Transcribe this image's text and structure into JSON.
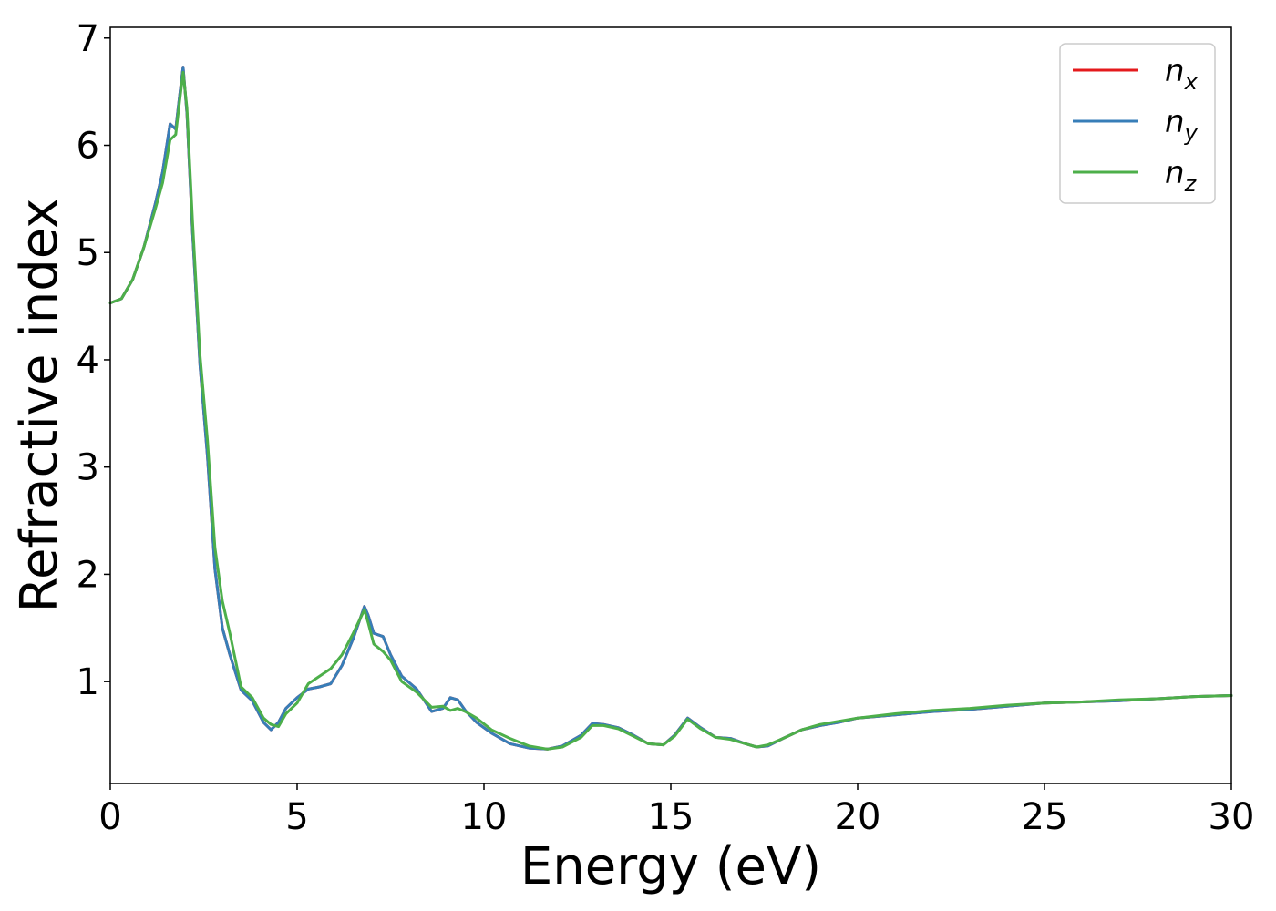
{
  "chart_data": {
    "type": "line",
    "xlabel": "Energy (eV)",
    "ylabel": "Refractive index",
    "xlim": [
      0,
      30
    ],
    "ylim": [
      0.05,
      7.1
    ],
    "xticks": [
      0,
      5,
      10,
      15,
      20,
      25,
      30
    ],
    "yticks": [
      1,
      2,
      3,
      4,
      5,
      6,
      7
    ],
    "grid": false,
    "legend_position": "top-right",
    "series": [
      {
        "name": "n_x",
        "legend_main": "n",
        "legend_sub": "x",
        "color": "#e41a1c",
        "x": [
          0,
          0.3,
          0.6,
          0.9,
          1.2,
          1.4,
          1.6,
          1.75,
          1.85,
          1.95,
          2.05,
          2.2,
          2.4,
          2.6,
          2.8,
          3.0,
          3.2,
          3.5,
          3.8,
          4.1,
          4.3,
          4.5,
          4.7,
          5.0,
          5.3,
          5.6,
          5.9,
          6.2,
          6.5,
          6.8,
          6.9,
          7.05,
          7.3,
          7.5,
          7.8,
          8.2,
          8.6,
          8.9,
          9.1,
          9.3,
          9.5,
          9.8,
          10.2,
          10.7,
          11.2,
          11.7,
          12.1,
          12.6,
          12.9,
          13.2,
          13.6,
          14.0,
          14.4,
          14.8,
          15.1,
          15.45,
          15.8,
          16.2,
          16.6,
          17.0,
          17.3,
          17.6,
          18.0,
          18.5,
          19.0,
          19.5,
          20.0,
          21,
          22,
          23,
          24,
          25,
          26,
          27,
          28,
          29,
          30
        ],
        "values": [
          4.53,
          4.57,
          4.75,
          5.05,
          5.45,
          5.75,
          6.2,
          6.15,
          6.45,
          6.73,
          6.3,
          5.2,
          3.95,
          3.1,
          2.05,
          1.5,
          1.25,
          0.92,
          0.82,
          0.62,
          0.55,
          0.62,
          0.75,
          0.85,
          0.93,
          0.95,
          0.98,
          1.15,
          1.4,
          1.7,
          1.62,
          1.45,
          1.42,
          1.25,
          1.05,
          0.93,
          0.72,
          0.75,
          0.85,
          0.83,
          0.73,
          0.62,
          0.52,
          0.42,
          0.38,
          0.37,
          0.4,
          0.5,
          0.61,
          0.6,
          0.57,
          0.5,
          0.42,
          0.41,
          0.5,
          0.66,
          0.57,
          0.48,
          0.47,
          0.42,
          0.39,
          0.4,
          0.47,
          0.55,
          0.59,
          0.62,
          0.66,
          0.69,
          0.72,
          0.74,
          0.77,
          0.8,
          0.81,
          0.82,
          0.84,
          0.86,
          0.87
        ]
      },
      {
        "name": "n_y",
        "legend_main": "n",
        "legend_sub": "y",
        "color": "#377eb8",
        "x": [
          0,
          0.3,
          0.6,
          0.9,
          1.2,
          1.4,
          1.6,
          1.75,
          1.85,
          1.95,
          2.05,
          2.2,
          2.4,
          2.6,
          2.8,
          3.0,
          3.2,
          3.5,
          3.8,
          4.1,
          4.3,
          4.5,
          4.7,
          5.0,
          5.3,
          5.6,
          5.9,
          6.2,
          6.5,
          6.8,
          6.9,
          7.05,
          7.3,
          7.5,
          7.8,
          8.2,
          8.6,
          8.9,
          9.1,
          9.3,
          9.5,
          9.8,
          10.2,
          10.7,
          11.2,
          11.7,
          12.1,
          12.6,
          12.9,
          13.2,
          13.6,
          14.0,
          14.4,
          14.8,
          15.1,
          15.45,
          15.8,
          16.2,
          16.6,
          17.0,
          17.3,
          17.6,
          18.0,
          18.5,
          19.0,
          19.5,
          20.0,
          21,
          22,
          23,
          24,
          25,
          26,
          27,
          28,
          29,
          30
        ],
        "values": [
          4.53,
          4.57,
          4.75,
          5.05,
          5.45,
          5.75,
          6.2,
          6.15,
          6.45,
          6.73,
          6.3,
          5.2,
          3.95,
          3.1,
          2.05,
          1.5,
          1.25,
          0.92,
          0.82,
          0.62,
          0.55,
          0.62,
          0.75,
          0.85,
          0.93,
          0.95,
          0.98,
          1.15,
          1.4,
          1.7,
          1.62,
          1.45,
          1.42,
          1.25,
          1.05,
          0.93,
          0.72,
          0.75,
          0.85,
          0.83,
          0.73,
          0.62,
          0.52,
          0.42,
          0.38,
          0.37,
          0.4,
          0.5,
          0.61,
          0.6,
          0.57,
          0.5,
          0.42,
          0.41,
          0.5,
          0.66,
          0.57,
          0.48,
          0.47,
          0.42,
          0.39,
          0.4,
          0.47,
          0.55,
          0.59,
          0.62,
          0.66,
          0.69,
          0.72,
          0.74,
          0.77,
          0.8,
          0.81,
          0.82,
          0.84,
          0.86,
          0.87
        ]
      },
      {
        "name": "n_z",
        "legend_main": "n",
        "legend_sub": "z",
        "color": "#4daf4a",
        "x": [
          0,
          0.3,
          0.6,
          0.9,
          1.2,
          1.4,
          1.6,
          1.75,
          1.85,
          1.95,
          2.05,
          2.2,
          2.4,
          2.6,
          2.8,
          3.0,
          3.2,
          3.5,
          3.8,
          4.1,
          4.3,
          4.5,
          4.7,
          5.0,
          5.3,
          5.6,
          5.9,
          6.2,
          6.5,
          6.8,
          6.9,
          7.05,
          7.3,
          7.5,
          7.8,
          8.2,
          8.6,
          8.9,
          9.1,
          9.3,
          9.5,
          9.8,
          10.2,
          10.7,
          11.2,
          11.7,
          12.1,
          12.6,
          12.9,
          13.2,
          13.6,
          14.0,
          14.4,
          14.8,
          15.1,
          15.45,
          15.8,
          16.2,
          16.6,
          17.0,
          17.3,
          17.6,
          18.0,
          18.5,
          19.0,
          19.5,
          20.0,
          21,
          22,
          23,
          24,
          25,
          26,
          27,
          28,
          29,
          30
        ],
        "values": [
          4.53,
          4.57,
          4.75,
          5.05,
          5.4,
          5.65,
          6.05,
          6.1,
          6.4,
          6.68,
          6.35,
          5.3,
          4.05,
          3.25,
          2.25,
          1.75,
          1.45,
          0.95,
          0.85,
          0.66,
          0.6,
          0.58,
          0.7,
          0.8,
          0.98,
          1.05,
          1.12,
          1.25,
          1.45,
          1.67,
          1.55,
          1.35,
          1.28,
          1.2,
          1.0,
          0.9,
          0.76,
          0.77,
          0.73,
          0.75,
          0.72,
          0.66,
          0.55,
          0.47,
          0.4,
          0.37,
          0.39,
          0.48,
          0.59,
          0.59,
          0.56,
          0.49,
          0.42,
          0.41,
          0.49,
          0.65,
          0.56,
          0.48,
          0.46,
          0.42,
          0.39,
          0.41,
          0.47,
          0.55,
          0.6,
          0.63,
          0.66,
          0.7,
          0.73,
          0.75,
          0.78,
          0.8,
          0.81,
          0.83,
          0.84,
          0.86,
          0.87
        ]
      }
    ]
  }
}
